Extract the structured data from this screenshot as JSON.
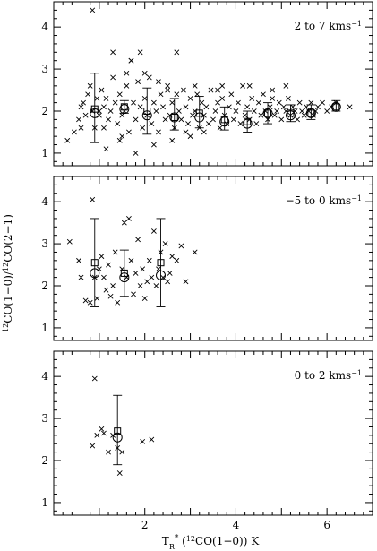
{
  "chart_data": {
    "type": "scatter",
    "shared_x": {
      "label_parts": [
        "T",
        "R",
        "*",
        " (",
        "12",
        "CO(1−0))  K"
      ],
      "xlim": [
        0,
        7
      ],
      "xticks": [
        2,
        4,
        6
      ]
    },
    "shared_y": {
      "label_parts": [
        "12",
        "CO(1−0)/",
        "12",
        "CO(2−1)"
      ],
      "ylim": [
        0.7,
        4.6
      ],
      "yticks": [
        1,
        2,
        3,
        4
      ]
    },
    "panels": [
      {
        "label": "2 to 7 kms",
        "label_sup": "−1",
        "points": [
          [
            0.3,
            1.3
          ],
          [
            0.45,
            1.5
          ],
          [
            0.55,
            1.8
          ],
          [
            0.6,
            2.1
          ],
          [
            0.65,
            2.2
          ],
          [
            0.7,
            1.9
          ],
          [
            0.75,
            2.4
          ],
          [
            0.8,
            2.6
          ],
          [
            0.85,
            2.0
          ],
          [
            0.9,
            1.6
          ],
          [
            0.95,
            2.3
          ],
          [
            1.0,
            1.9
          ],
          [
            1.05,
            2.5
          ],
          [
            1.1,
            2.1
          ],
          [
            1.15,
            2.3
          ],
          [
            1.2,
            1.8
          ],
          [
            1.25,
            2.0
          ],
          [
            1.3,
            2.8
          ],
          [
            1.35,
            2.2
          ],
          [
            1.4,
            1.7
          ],
          [
            1.45,
            2.4
          ],
          [
            1.5,
            1.9
          ],
          [
            1.55,
            2.0
          ],
          [
            1.6,
            2.6
          ],
          [
            1.65,
            1.5
          ],
          [
            1.7,
            3.2
          ],
          [
            1.75,
            2.2
          ],
          [
            1.8,
            1.8
          ],
          [
            1.85,
            2.7
          ],
          [
            1.9,
            2.1
          ],
          [
            1.95,
            1.6
          ],
          [
            2.0,
            2.3
          ],
          [
            2.05,
            1.9
          ],
          [
            2.1,
            2.8
          ],
          [
            2.15,
            1.7
          ],
          [
            2.2,
            2.2
          ],
          [
            2.25,
            2.0
          ],
          [
            2.3,
            1.5
          ],
          [
            2.35,
            2.4
          ],
          [
            2.4,
            2.1
          ],
          [
            2.45,
            1.8
          ],
          [
            2.5,
            2.6
          ],
          [
            2.55,
            1.9
          ],
          [
            2.6,
            2.2
          ],
          [
            2.65,
            1.6
          ],
          [
            2.7,
            2.4
          ],
          [
            2.75,
            2.0
          ],
          [
            2.8,
            1.8
          ],
          [
            2.85,
            2.5
          ],
          [
            2.9,
            2.1
          ],
          [
            2.95,
            1.7
          ],
          [
            3.0,
            2.3
          ],
          [
            3.05,
            1.9
          ],
          [
            3.1,
            2.0
          ],
          [
            3.15,
            2.4
          ],
          [
            3.2,
            1.6
          ],
          [
            3.25,
            2.2
          ],
          [
            3.3,
            1.9
          ],
          [
            3.35,
            2.1
          ],
          [
            3.4,
            1.7
          ],
          [
            3.45,
            2.5
          ],
          [
            3.5,
            1.8
          ],
          [
            3.55,
            2.0
          ],
          [
            3.6,
            2.2
          ],
          [
            3.65,
            1.6
          ],
          [
            3.7,
            2.3
          ],
          [
            3.75,
            1.9
          ],
          [
            3.8,
            1.7
          ],
          [
            3.85,
            2.1
          ],
          [
            3.9,
            2.4
          ],
          [
            3.95,
            1.8
          ],
          [
            4.0,
            2.0
          ],
          [
            4.05,
            2.2
          ],
          [
            4.1,
            1.7
          ],
          [
            4.15,
            2.6
          ],
          [
            4.2,
            1.9
          ],
          [
            4.25,
            2.1
          ],
          [
            4.3,
            1.8
          ],
          [
            4.35,
            2.3
          ],
          [
            4.4,
            2.0
          ],
          [
            4.45,
            1.7
          ],
          [
            4.5,
            2.2
          ],
          [
            4.55,
            1.9
          ],
          [
            4.6,
            2.4
          ],
          [
            4.65,
            2.0
          ],
          [
            4.7,
            1.8
          ],
          [
            4.75,
            2.1
          ],
          [
            4.8,
            2.3
          ],
          [
            4.85,
            1.9
          ],
          [
            4.9,
            2.0
          ],
          [
            4.95,
            2.2
          ],
          [
            5.0,
            1.8
          ],
          [
            5.05,
            2.1
          ],
          [
            5.1,
            2.0
          ],
          [
            5.15,
            2.3
          ],
          [
            5.2,
            1.9
          ],
          [
            5.25,
            2.1
          ],
          [
            5.3,
            2.0
          ],
          [
            5.35,
            1.8
          ],
          [
            5.4,
            2.2
          ],
          [
            5.45,
            2.0
          ],
          [
            5.5,
            1.9
          ],
          [
            5.55,
            2.1
          ],
          [
            5.6,
            2.0
          ],
          [
            5.65,
            2.2
          ],
          [
            5.7,
            1.9
          ],
          [
            5.75,
            2.0
          ],
          [
            5.8,
            2.1
          ],
          [
            5.9,
            2.2
          ],
          [
            6.0,
            2.0
          ],
          [
            6.1,
            2.1
          ],
          [
            6.2,
            2.2
          ],
          [
            6.5,
            2.1
          ],
          [
            0.85,
            4.4
          ],
          [
            1.3,
            3.4
          ],
          [
            1.7,
            3.2
          ],
          [
            1.9,
            3.4
          ],
          [
            2.7,
            3.4
          ],
          [
            1.6,
            2.9
          ],
          [
            2.0,
            2.9
          ],
          [
            2.5,
            2.5
          ],
          [
            3.1,
            2.6
          ],
          [
            3.6,
            2.5
          ],
          [
            1.15,
            1.1
          ],
          [
            1.45,
            1.3
          ],
          [
            1.8,
            1.0
          ],
          [
            2.2,
            1.2
          ],
          [
            2.6,
            1.3
          ],
          [
            3.0,
            1.4
          ],
          [
            3.3,
            1.5
          ],
          [
            0.6,
            1.6
          ],
          [
            1.1,
            1.6
          ],
          [
            1.5,
            1.4
          ],
          [
            2.9,
            1.5
          ],
          [
            4.3,
            2.6
          ],
          [
            4.8,
            2.5
          ],
          [
            5.1,
            2.6
          ],
          [
            3.7,
            2.6
          ],
          [
            2.3,
            2.7
          ],
          [
            1.0,
            2.0
          ]
        ],
        "bins": [
          {
            "x": 0.9,
            "circle": 1.95,
            "square": 2.05,
            "err_lo": 1.25,
            "err_hi": 2.9
          },
          {
            "x": 1.55,
            "circle": 2.05,
            "square": 2.1,
            "err_lo": 1.95,
            "err_hi": 2.25
          },
          {
            "x": 2.05,
            "circle": 1.9,
            "square": 2.0,
            "err_lo": 1.45,
            "err_hi": 2.55
          },
          {
            "x": 2.65,
            "circle": 1.85,
            "square": 1.85,
            "err_lo": 1.55,
            "err_hi": 2.3
          },
          {
            "x": 3.2,
            "circle": 1.85,
            "square": 1.95,
            "err_lo": 1.6,
            "err_hi": 2.35
          },
          {
            "x": 3.75,
            "circle": 1.75,
            "square": 1.8,
            "err_lo": 1.55,
            "err_hi": 2.1
          },
          {
            "x": 4.25,
            "circle": 1.7,
            "square": 1.75,
            "err_lo": 1.5,
            "err_hi": 2.0
          },
          {
            "x": 4.7,
            "circle": 1.95,
            "square": 1.95,
            "err_lo": 1.7,
            "err_hi": 2.2
          },
          {
            "x": 5.2,
            "circle": 1.9,
            "square": 1.95,
            "err_lo": 1.75,
            "err_hi": 2.15
          },
          {
            "x": 5.65,
            "circle": 1.95,
            "square": 1.95,
            "err_lo": 1.8,
            "err_hi": 2.15
          },
          {
            "x": 6.2,
            "circle": 2.1,
            "square": 2.1,
            "err_lo": 2.0,
            "err_hi": 2.25
          }
        ]
      },
      {
        "label": "−5 to 0 kms",
        "label_sup": "−1",
        "points": [
          [
            0.35,
            3.05
          ],
          [
            0.85,
            4.05
          ],
          [
            0.55,
            2.6
          ],
          [
            0.6,
            2.2
          ],
          [
            0.7,
            1.65
          ],
          [
            0.8,
            1.6
          ],
          [
            0.95,
            1.7
          ],
          [
            1.0,
            2.4
          ],
          [
            1.05,
            2.7
          ],
          [
            1.1,
            2.2
          ],
          [
            1.15,
            1.9
          ],
          [
            1.2,
            2.5
          ],
          [
            1.3,
            2.0
          ],
          [
            1.35,
            2.8
          ],
          [
            1.4,
            1.6
          ],
          [
            1.5,
            2.4
          ],
          [
            1.55,
            3.5
          ],
          [
            1.6,
            2.2
          ],
          [
            1.65,
            3.6
          ],
          [
            1.7,
            2.6
          ],
          [
            1.75,
            1.8
          ],
          [
            1.8,
            2.3
          ],
          [
            1.85,
            3.1
          ],
          [
            1.9,
            2.0
          ],
          [
            1.95,
            2.4
          ],
          [
            2.0,
            1.7
          ],
          [
            2.05,
            2.1
          ],
          [
            2.1,
            2.6
          ],
          [
            2.15,
            2.2
          ],
          [
            2.2,
            3.3
          ],
          [
            2.25,
            2.0
          ],
          [
            2.3,
            2.4
          ],
          [
            2.35,
            2.8
          ],
          [
            2.4,
            2.2
          ],
          [
            2.45,
            3.0
          ],
          [
            2.5,
            2.1
          ],
          [
            2.6,
            2.7
          ],
          [
            2.7,
            2.6
          ],
          [
            2.8,
            2.95
          ],
          [
            2.9,
            2.1
          ],
          [
            3.1,
            2.8
          ],
          [
            1.25,
            1.75
          ],
          [
            0.9,
            2.2
          ],
          [
            2.55,
            2.3
          ]
        ],
        "bins": [
          {
            "x": 0.9,
            "circle": 2.3,
            "square": 2.55,
            "err_lo": 1.5,
            "err_hi": 3.6
          },
          {
            "x": 1.55,
            "circle": 2.2,
            "square": 2.3,
            "err_lo": 1.75,
            "err_hi": 2.85
          },
          {
            "x": 2.35,
            "circle": 2.25,
            "square": 2.55,
            "err_lo": 1.5,
            "err_hi": 3.6
          }
        ]
      },
      {
        "label": "0 to 2 kms",
        "label_sup": "−1",
        "points": [
          [
            0.85,
            2.35
          ],
          [
            0.9,
            3.95
          ],
          [
            0.95,
            2.6
          ],
          [
            1.05,
            2.75
          ],
          [
            1.1,
            2.65
          ],
          [
            1.2,
            2.2
          ],
          [
            1.4,
            2.3
          ],
          [
            1.45,
            1.7
          ],
          [
            1.5,
            2.2
          ],
          [
            1.95,
            2.45
          ],
          [
            2.15,
            2.5
          ],
          [
            1.3,
            2.6
          ]
        ],
        "bins": [
          {
            "x": 1.4,
            "circle": 2.55,
            "square": 2.7,
            "err_lo": 1.9,
            "err_hi": 3.55
          }
        ]
      }
    ]
  }
}
